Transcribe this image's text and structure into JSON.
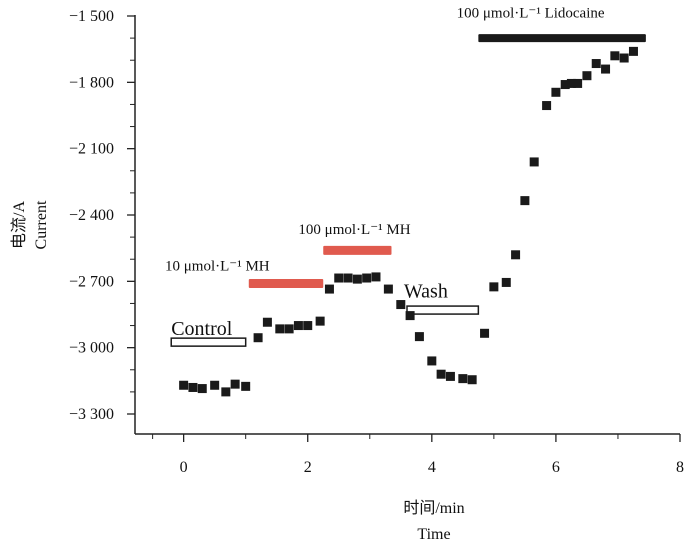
{
  "chart_data": {
    "type": "scatter",
    "xlabel": "时间/min",
    "xlabel_en": "Time",
    "ylabel": "电流/A",
    "ylabel_en": "Current",
    "xlim": [
      -0.8,
      8
    ],
    "ylim": [
      -3390,
      -1500
    ],
    "x_ticks": [
      0,
      2,
      4,
      6,
      8
    ],
    "x_tick_labels": [
      "0",
      "2",
      "4",
      "6",
      "8"
    ],
    "y_ticks": [
      -1500,
      -1800,
      -2100,
      -2400,
      -2700,
      -3000,
      -3300
    ],
    "y_tick_labels": [
      "−1 500",
      "−1 800",
      "−2 100",
      "−2 400",
      "−2 700",
      "−3 000",
      "−3 300"
    ],
    "grid": false,
    "series": [
      {
        "color": "#1a1a1a",
        "marker": "square",
        "points": [
          [
            0.0,
            -3170
          ],
          [
            0.15,
            -3180
          ],
          [
            0.3,
            -3185
          ],
          [
            0.5,
            -3170
          ],
          [
            0.68,
            -3200
          ],
          [
            0.83,
            -3165
          ],
          [
            1.0,
            -3175
          ],
          [
            1.2,
            -2955
          ],
          [
            1.35,
            -2885
          ],
          [
            1.55,
            -2915
          ],
          [
            1.7,
            -2915
          ],
          [
            1.85,
            -2900
          ],
          [
            2.0,
            -2900
          ],
          [
            2.2,
            -2880
          ],
          [
            2.35,
            -2735
          ],
          [
            2.5,
            -2685
          ],
          [
            2.65,
            -2685
          ],
          [
            2.8,
            -2690
          ],
          [
            2.95,
            -2685
          ],
          [
            3.1,
            -2680
          ],
          [
            3.3,
            -2735
          ],
          [
            3.5,
            -2805
          ],
          [
            3.65,
            -2855
          ],
          [
            3.8,
            -2950
          ],
          [
            4.0,
            -3060
          ],
          [
            4.15,
            -3120
          ],
          [
            4.3,
            -3130
          ],
          [
            4.5,
            -3140
          ],
          [
            4.65,
            -3145
          ],
          [
            4.85,
            -2935
          ],
          [
            5.0,
            -2725
          ],
          [
            5.2,
            -2705
          ],
          [
            5.35,
            -2580
          ],
          [
            5.5,
            -2335
          ],
          [
            5.65,
            -2160
          ],
          [
            5.85,
            -1905
          ],
          [
            6.0,
            -1845
          ],
          [
            6.15,
            -1810
          ],
          [
            6.25,
            -1805
          ],
          [
            6.35,
            -1805
          ],
          [
            6.5,
            -1770
          ],
          [
            6.65,
            -1715
          ],
          [
            6.8,
            -1740
          ],
          [
            6.95,
            -1680
          ],
          [
            7.1,
            -1690
          ],
          [
            7.25,
            -1660
          ]
        ]
      }
    ],
    "annotations": [
      {
        "text": "Control",
        "style": "large",
        "anchor": [
          -0.2,
          -2942
        ],
        "bar": {
          "x": [
            -0.2,
            1.0
          ],
          "y": -2975,
          "type": "open",
          "color": "#1a1a1a"
        }
      },
      {
        "text": "10 μmol·L⁻¹ MH",
        "style": "small",
        "anchor": [
          -0.3,
          -2652
        ],
        "bar": {
          "x": [
            1.05,
            2.25
          ],
          "y": -2710,
          "type": "filled",
          "color": "#e05a4e"
        }
      },
      {
        "text": "100 μmol·L⁻¹ MH",
        "style": "small",
        "anchor": [
          1.85,
          -2486
        ],
        "bar": {
          "x": [
            2.25,
            3.35
          ],
          "y": -2560,
          "type": "filled",
          "color": "#e05a4e"
        }
      },
      {
        "text": "Wash",
        "style": "large",
        "anchor": [
          3.55,
          -2772
        ],
        "bar": {
          "x": [
            3.6,
            4.75
          ],
          "y": -2830,
          "type": "open",
          "color": "#1a1a1a"
        }
      },
      {
        "text": "100 μmol·L⁻¹ Lidocaine",
        "style": "small",
        "anchor": [
          4.4,
          -1507
        ],
        "bar": {
          "x": [
            4.75,
            7.45
          ],
          "y": -1600,
          "type": "filled",
          "color": "#1a1a1a"
        }
      }
    ]
  }
}
